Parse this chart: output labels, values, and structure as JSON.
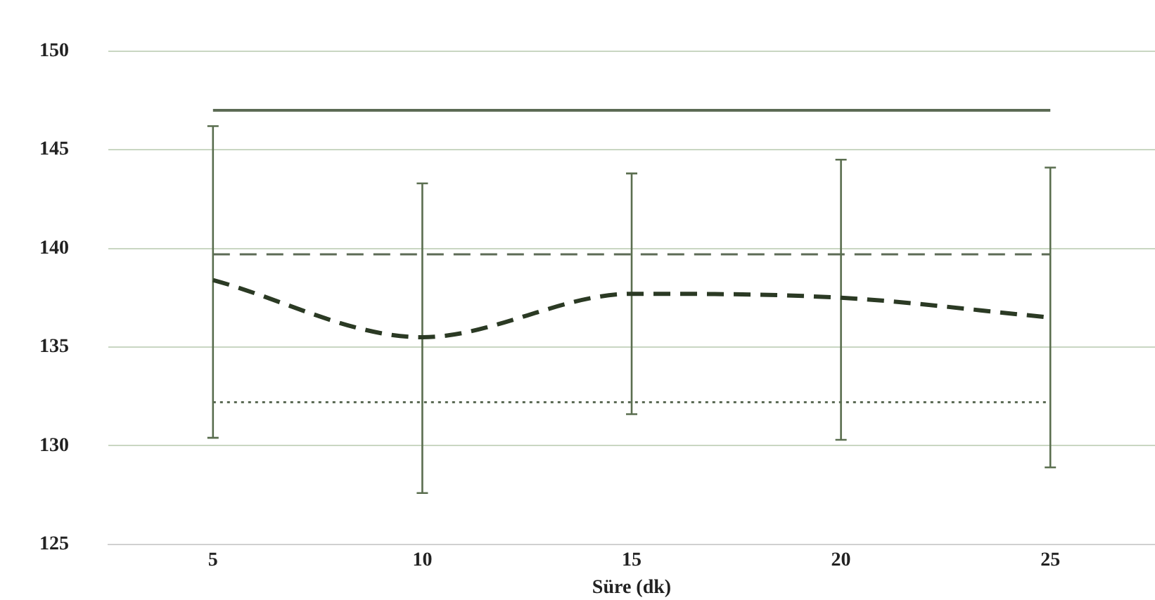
{
  "chart_data": {
    "type": "line",
    "xlabel": "Süre (dk)",
    "categories": [
      "5",
      "10",
      "15",
      "20",
      "25"
    ],
    "series": [
      {
        "color": "#2b3a24",
        "values": [
          138.4,
          135.5,
          137.7,
          137.5,
          136.5
        ],
        "errors": [
          [
            130.4,
            146.2
          ],
          [
            127.6,
            143.3
          ],
          [
            131.6,
            143.8
          ],
          [
            130.3,
            144.5
          ],
          [
            128.9,
            144.1
          ]
        ],
        "line_style": "dashed"
      }
    ],
    "ylim": [
      125,
      150
    ],
    "yticks": [
      125,
      130,
      135,
      140,
      145,
      150
    ],
    "grid": "y",
    "legend": false,
    "marker": "none",
    "ref_lines": [
      {
        "axis": "y",
        "value": 147,
        "color": "#5c6b55",
        "line_style": "solid"
      },
      {
        "axis": "y",
        "value": 139.7,
        "color": "#5c6b55",
        "line_style": "dashed"
      },
      {
        "axis": "y",
        "value": 132.2,
        "color": "#5c6b55",
        "line_style": "dotted"
      }
    ]
  }
}
